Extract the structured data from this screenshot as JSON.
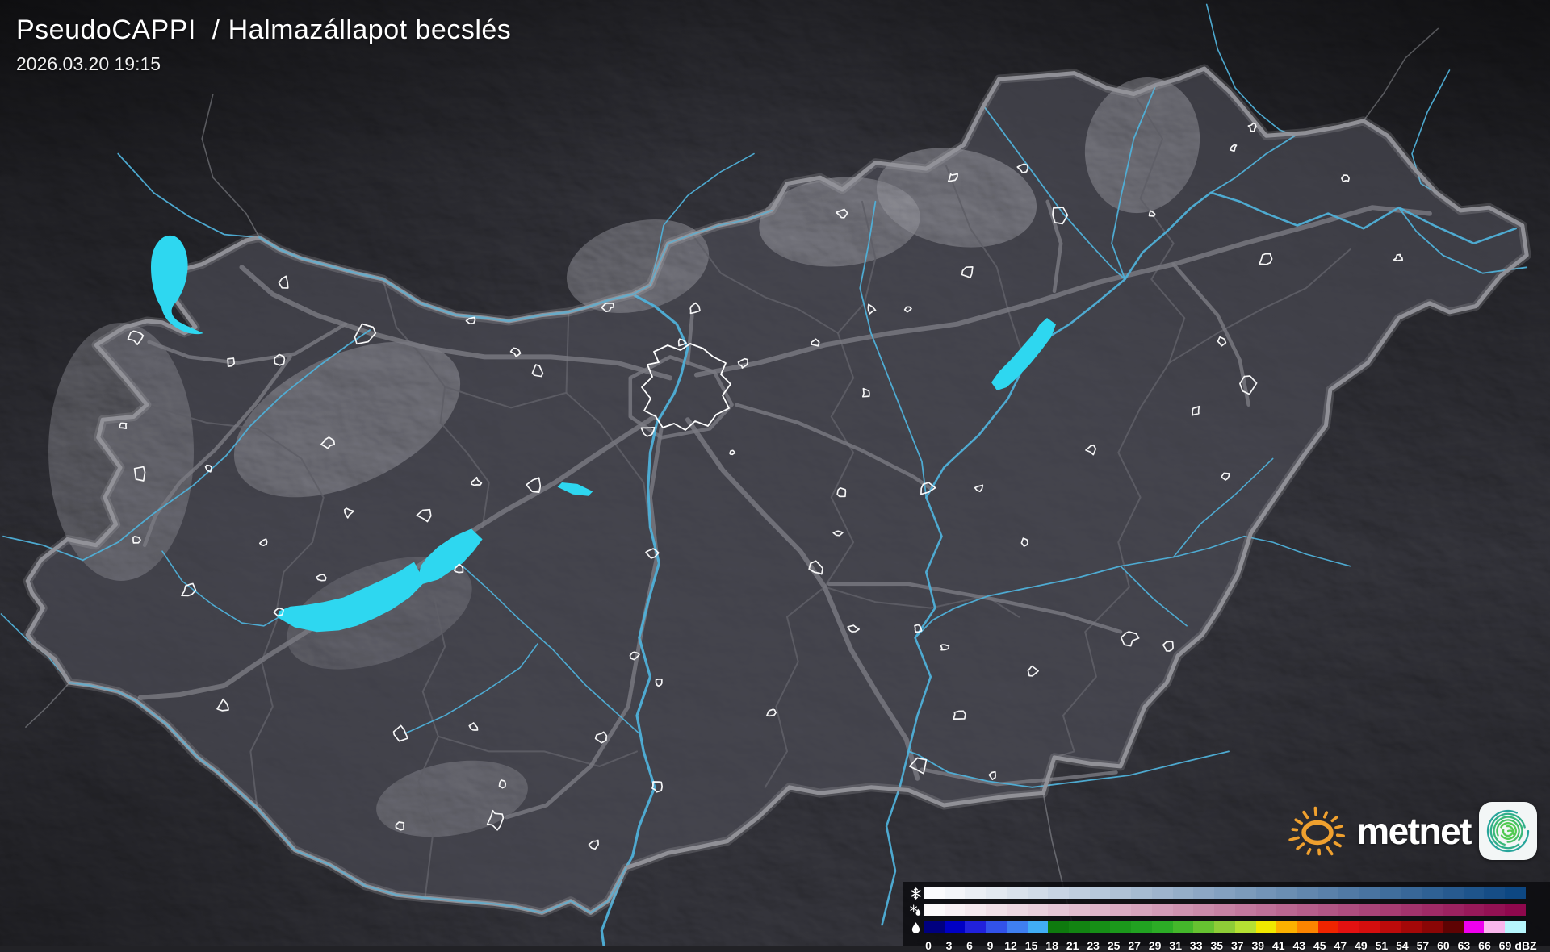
{
  "header": {
    "title": "PseudoCAPPI  / Halmazállapot becslés",
    "timestamp": "2026.03.20 19:15"
  },
  "brand": {
    "logo_text": "metnet",
    "sun_icon": "sun-icon",
    "app_icon": "spiral-icon",
    "sun_color": "#efa02e",
    "spiral_colors": [
      "#27a59b",
      "#2fae8a",
      "#3ab878",
      "#46c163",
      "#52ca52"
    ]
  },
  "legend": {
    "unit_label": "dBZ",
    "tick_labels": [
      "0",
      "3",
      "6",
      "9",
      "12",
      "15",
      "18",
      "21",
      "23",
      "25",
      "27",
      "29",
      "31",
      "33",
      "35",
      "37",
      "39",
      "41",
      "43",
      "45",
      "47",
      "49",
      "51",
      "54",
      "57",
      "60",
      "63",
      "66",
      "69",
      "dBZ"
    ],
    "rows": [
      {
        "name": "snow",
        "icon": "snowflake-icon",
        "colors": [
          "#fbfbfd",
          "#f3f5f9",
          "#eaeef4",
          "#e2e8f0",
          "#d9e1eb",
          "#d1dbe7",
          "#c8d4e3",
          "#c0cede",
          "#b7c8da",
          "#afc1d5",
          "#a6bbd1",
          "#9eb4cd",
          "#95aec8",
          "#8da7c4",
          "#84a1c0",
          "#7c9bbb",
          "#7394b7",
          "#6b8eb2",
          "#6287ae",
          "#5a81aa",
          "#517aa5",
          "#4974a1",
          "#406e9c",
          "#386798",
          "#2f6194",
          "#275a8f",
          "#1e548b",
          "#164d86",
          "#0d4782"
        ]
      },
      {
        "name": "sleet",
        "icon": "sleet-icon",
        "colors": [
          "#fdfafb",
          "#f9f1f5",
          "#f5e9ef",
          "#f1e0e8",
          "#edd7e2",
          "#e9cfdc",
          "#e5c6d6",
          "#e2bdcf",
          "#deb5c9",
          "#daacc3",
          "#d6a4bd",
          "#d29bb7",
          "#ce92b0",
          "#ca8aaa",
          "#c681a4",
          "#c2789e",
          "#be7098",
          "#ba6791",
          "#b65e8b",
          "#b25685",
          "#ae4d7f",
          "#aa4479",
          "#a73c72",
          "#a2336c",
          "#9f2a66",
          "#9b2260",
          "#971959",
          "#931153",
          "#8f084d"
        ]
      },
      {
        "name": "rain",
        "icon": "raindrop-icon",
        "colors": [
          "#00007f",
          "#0000c4",
          "#2121dc",
          "#3252e9",
          "#3f7ff1",
          "#41adf5",
          "#0e7a0e",
          "#128412",
          "#168e16",
          "#1b981b",
          "#21a221",
          "#2cac26",
          "#44b72b",
          "#66c231",
          "#8ecd37",
          "#b5e033",
          "#f0e800",
          "#fcb100",
          "#fc8400",
          "#ef2400",
          "#e31111",
          "#d40e0e",
          "#bc0b0b",
          "#a40808",
          "#8a0606",
          "#5e0303",
          "#ee00ee",
          "#f9b6ec",
          "#b6f6fc"
        ]
      }
    ]
  },
  "map": {
    "region": "Hungary",
    "colors": {
      "base": "#45454b",
      "country_fill": "#50505a",
      "country_border": "#94949a",
      "county_border": "#5e5e66",
      "motorway": "#7b7b82",
      "river": "#4fb0d8",
      "border_river": "#64aecd",
      "lake": "#2ed7f0",
      "city_outline": "#ffffff",
      "neighbor_border": "#cfd2d6"
    }
  }
}
